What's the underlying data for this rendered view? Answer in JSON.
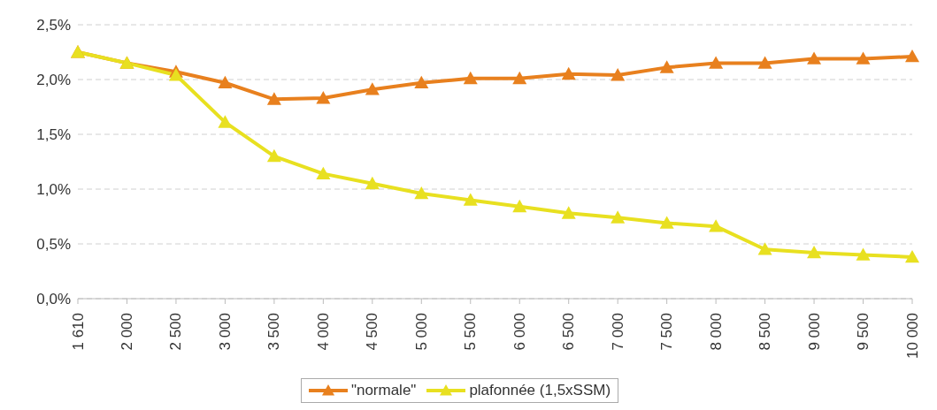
{
  "chart_data": {
    "type": "line",
    "categories": [
      "1 610",
      "2 000",
      "2 500",
      "3 000",
      "3 500",
      "4 000",
      "4 500",
      "5 000",
      "5 500",
      "6 000",
      "6 500",
      "7 000",
      "7 500",
      "8 000",
      "8 500",
      "9 000",
      "9 500",
      "10 000"
    ],
    "series": [
      {
        "name": "\"normale\"",
        "color": "#e8801e",
        "values": [
          2.25,
          2.15,
          2.07,
          1.97,
          1.82,
          1.83,
          1.91,
          1.97,
          2.01,
          2.01,
          2.05,
          2.04,
          2.11,
          2.15,
          2.15,
          2.19,
          2.19,
          2.21
        ]
      },
      {
        "name": "plafonnée (1,5xSSM)",
        "color": "#e8e020",
        "values": [
          2.25,
          2.15,
          2.04,
          1.61,
          1.3,
          1.14,
          1.05,
          0.96,
          0.9,
          0.84,
          0.78,
          0.74,
          0.69,
          0.66,
          0.45,
          0.42,
          0.4,
          0.38
        ]
      }
    ],
    "ylim": [
      0,
      2.5
    ],
    "yticks": [
      {
        "value": 0,
        "label": "0,0%"
      },
      {
        "value": 0.5,
        "label": "0,5%"
      },
      {
        "value": 1,
        "label": "1,0%"
      },
      {
        "value": 1.5,
        "label": "1,5%"
      },
      {
        "value": 2,
        "label": "2,0%"
      },
      {
        "value": 2.5,
        "label": "2,5%"
      }
    ],
    "grid": "y",
    "legend": "bottom",
    "marker": "triangle",
    "line_style": "solid"
  }
}
